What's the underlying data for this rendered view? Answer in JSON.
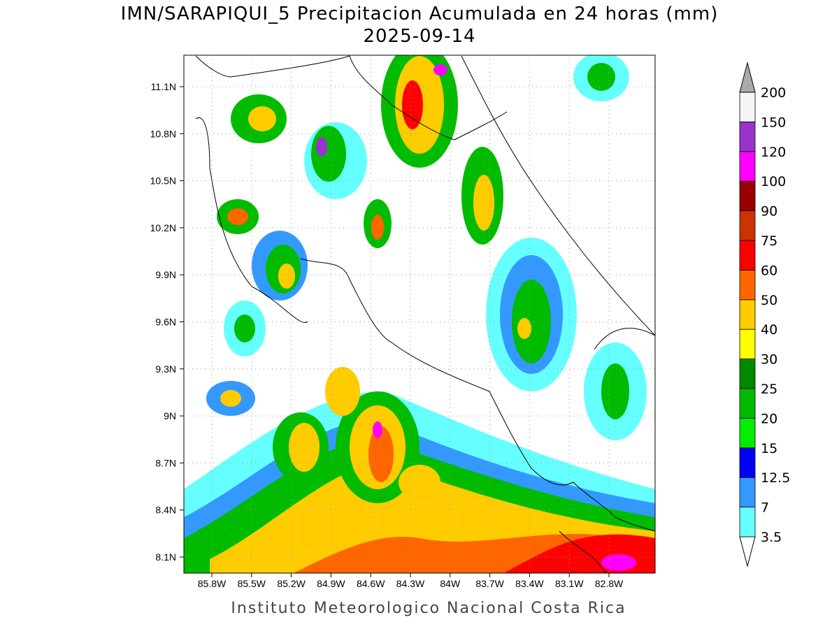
{
  "header": {
    "title": "IMN/SARAPIQUI_5 Precipitacion Acumulada en 24 horas (mm)",
    "subtitle": "2025-09-14"
  },
  "map": {
    "yticks": [
      "11.1N",
      "10.8N",
      "10.5N",
      "10.2N",
      "9.9N",
      "9.6N",
      "9.3N",
      "9N",
      "8.7N",
      "8.4N",
      "8.1N"
    ],
    "xticks": [
      "85.8W",
      "85.5W",
      "85.2W",
      "84.9W",
      "84.6W",
      "84.3W",
      "84W",
      "83.7W",
      "83.4W",
      "83.1W",
      "82.8W"
    ],
    "grid": true
  },
  "legend": {
    "levels": [
      {
        "label": "3.5",
        "color": "#66ffff"
      },
      {
        "label": "7",
        "color": "#3399ff"
      },
      {
        "label": "12.5",
        "color": "#0000ff"
      },
      {
        "label": "15",
        "color": "#00ee00"
      },
      {
        "label": "20",
        "color": "#00bb00"
      },
      {
        "label": "25",
        "color": "#008800"
      },
      {
        "label": "30",
        "color": "#ffff00"
      },
      {
        "label": "40",
        "color": "#ffcc00"
      },
      {
        "label": "50",
        "color": "#ff6600"
      },
      {
        "label": "60",
        "color": "#ff0000"
      },
      {
        "label": "75",
        "color": "#cc3300"
      },
      {
        "label": "90",
        "color": "#990000"
      },
      {
        "label": "100",
        "color": "#ff00ff"
      },
      {
        "label": "120",
        "color": "#9933cc"
      },
      {
        "label": "150",
        "color": "#f5f5f5"
      },
      {
        "label": "200",
        "color": "#aaaaaa"
      }
    ]
  },
  "footer": {
    "text": "Instituto Meteorologico Nacional Costa Rica"
  }
}
